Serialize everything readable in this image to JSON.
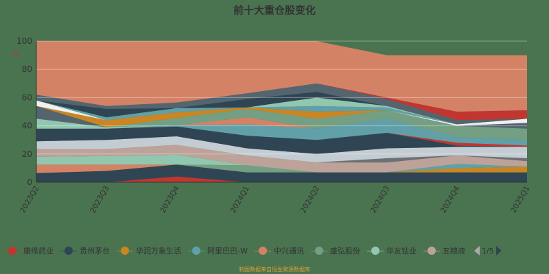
{
  "chart_data": {
    "type": "area",
    "stacked": true,
    "title": "前十大重仓股变化",
    "ylabel": "%",
    "ylim": [
      0,
      100
    ],
    "yticks": [
      0,
      20,
      40,
      60,
      80,
      100
    ],
    "grid": true,
    "categories": [
      "2023Q2",
      "2023Q3",
      "2023Q4",
      "2024Q1",
      "2024Q2",
      "2024Q3",
      "2024Q4",
      "2025Q1"
    ],
    "legend_position": "bottom",
    "legend_page": "1/5",
    "series": [
      {
        "name": "康缘药业",
        "color": "#c23531",
        "values": [
          0,
          0,
          4,
          0,
          0,
          0,
          0,
          0
        ]
      },
      {
        "name": "贵州茅台",
        "color": "#2f4554",
        "values": [
          6.5,
          8,
          8.5,
          7,
          7,
          7,
          7,
          7
        ]
      },
      {
        "name": "华润万象生活",
        "color": "#ca8622",
        "values": [
          0,
          0,
          0,
          0,
          0,
          0,
          3,
          4
        ]
      },
      {
        "name": "阿里巴巴-W",
        "color": "#61a0a8",
        "values": [
          0,
          0,
          0,
          0,
          0,
          0,
          3,
          0
        ]
      },
      {
        "name": "中兴通讯",
        "color": "#d48265",
        "values": [
          6,
          4.5,
          0,
          0,
          0,
          0,
          0,
          0
        ]
      },
      {
        "name": "盛弘股份",
        "color": "#749f83",
        "values": [
          0,
          0,
          0,
          5,
          0,
          0,
          0,
          0
        ]
      },
      {
        "name": "华友钴业",
        "color": "#91c7ae",
        "values": [
          5.5,
          6,
          7,
          0,
          0,
          0,
          0,
          0
        ]
      },
      {
        "name": "五粮液",
        "color": "#bda29a",
        "values": [
          5.5,
          5,
          7,
          7,
          7,
          7,
          6,
          4
        ]
      },
      {
        "color": "#6e7074",
        "values": [
          0,
          0,
          0,
          0,
          0,
          3,
          0,
          2
        ]
      },
      {
        "color": "#c4ccd3",
        "values": [
          5.5,
          6.5,
          6,
          5,
          6,
          7,
          6,
          8
        ]
      },
      {
        "color": "#2f4554",
        "values": [
          9,
          8,
          7,
          9,
          10,
          11,
          1,
          0
        ]
      },
      {
        "color": "#c23531",
        "values": [
          0,
          0,
          0,
          0,
          0,
          0,
          2,
          1
        ]
      },
      {
        "color": "#61a0a8",
        "values": [
          0,
          0,
          1,
          8,
          8,
          10,
          4,
          4
        ]
      },
      {
        "color": "#91c7ae",
        "values": [
          7,
          1,
          0,
          0,
          0,
          0,
          0,
          0
        ]
      },
      {
        "color": "#d48265",
        "values": [
          0,
          0,
          0,
          5,
          0,
          0,
          0,
          0
        ]
      },
      {
        "color": "#749f83",
        "values": [
          0,
          0,
          5,
          6,
          7,
          6,
          8,
          8
        ]
      },
      {
        "color": "#546570",
        "values": [
          9,
          0,
          0,
          0,
          0,
          0,
          0,
          4
        ]
      },
      {
        "color": "#ca8622",
        "values": [
          0,
          5,
          4,
          1,
          5,
          0,
          0,
          0
        ]
      },
      {
        "color": "#f0f0f0",
        "values": [
          4,
          0,
          0,
          0,
          0,
          0,
          1,
          3
        ]
      },
      {
        "color": "#61a0a8",
        "values": [
          0,
          2,
          3,
          0,
          4,
          2,
          0,
          0
        ]
      },
      {
        "color": "#91c7ae",
        "values": [
          0,
          0,
          0,
          0,
          6,
          1,
          0,
          0
        ]
      },
      {
        "color": "#2f4554",
        "values": [
          0,
          6,
          0,
          6,
          4,
          0,
          0,
          0
        ]
      },
      {
        "color": "#546570",
        "values": [
          4,
          2,
          4,
          4,
          6,
          5,
          3,
          0
        ]
      },
      {
        "color": "#c23531",
        "values": [
          0,
          0,
          0,
          0,
          0,
          1,
          6,
          6
        ]
      },
      {
        "color": "#d48265",
        "values": [
          38,
          46,
          43.5,
          37,
          30,
          30,
          40,
          39
        ]
      }
    ]
  },
  "footer": "制图数据来自恒生聚源数据库"
}
